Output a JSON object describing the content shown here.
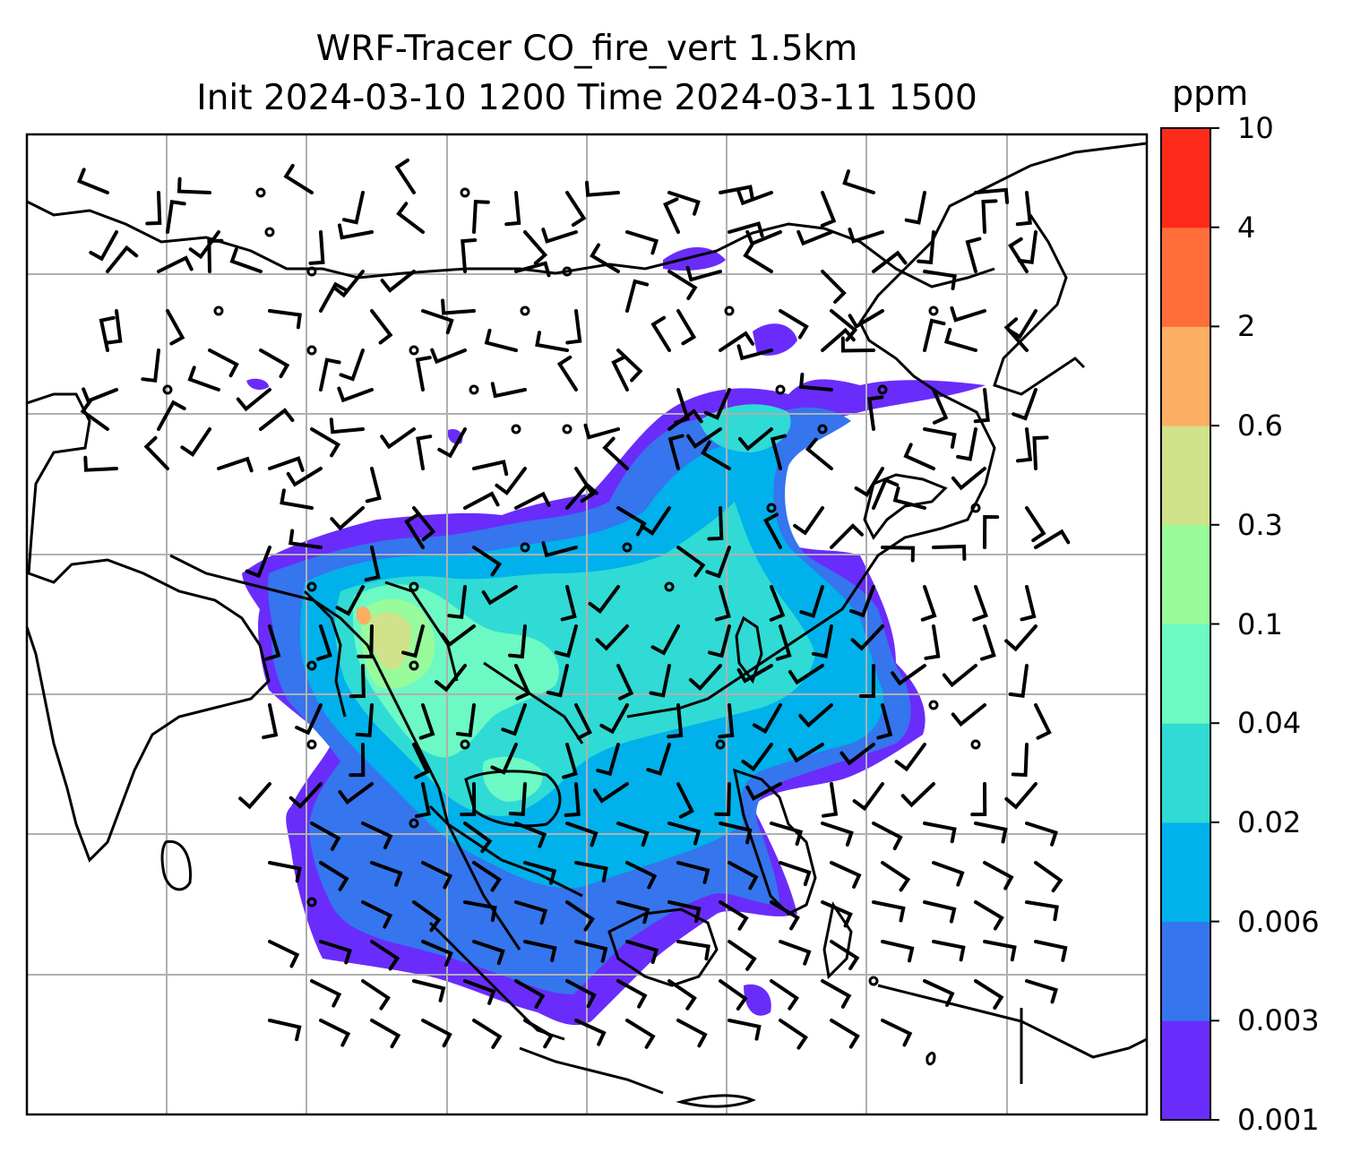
{
  "title": {
    "line1": "WRF-Tracer CO_fire_vert 1.5km",
    "line2": "Init 2024-03-10 1200 Time 2024-03-11 1500"
  },
  "colorbar": {
    "unit": "ppm",
    "ticks": [
      "0.001",
      "0.003",
      "0.006",
      "0.02",
      "0.04",
      "0.1",
      "0.3",
      "0.6",
      "2",
      "4",
      "10"
    ],
    "colors": [
      "#6a2cfb",
      "#3575ee",
      "#00b1eb",
      "#2fdbd4",
      "#6cf9c4",
      "#98fb9c",
      "#d1e38a",
      "#fdaf63",
      "#ff6e3a",
      "#fe2a1a"
    ]
  },
  "map": {
    "features": [
      "coastlines",
      "country-borders",
      "gridlines",
      "wind-barbs",
      "co-fire-tracer-contours"
    ],
    "gridlines": "on"
  }
}
